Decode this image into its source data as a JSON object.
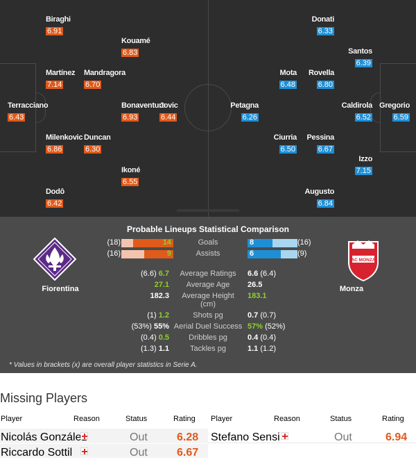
{
  "home": {
    "name": "Fiorentina",
    "players": [
      {
        "name": "Biraghi",
        "rating": "6.91"
      },
      {
        "name": "Kouamé",
        "rating": "6.83"
      },
      {
        "name": "Martínez",
        "rating": "7.14"
      },
      {
        "name": "Mandragora",
        "rating": "6.70"
      },
      {
        "name": "Terracciano",
        "rating": "6.43"
      },
      {
        "name": "Bonaventura",
        "rating": "6.93"
      },
      {
        "name": "Jovic",
        "rating": "6.44"
      },
      {
        "name": "Milenkovic",
        "rating": "6.86"
      },
      {
        "name": "Duncan",
        "rating": "6.30"
      },
      {
        "name": "Ikoné",
        "rating": "6.55"
      },
      {
        "name": "Dodô",
        "rating": "6.42"
      }
    ]
  },
  "away": {
    "name": "Monza",
    "crest_text": "AC MONZA",
    "players": [
      {
        "name": "Donati",
        "rating": "6.33"
      },
      {
        "name": "Santos",
        "rating": "6.39"
      },
      {
        "name": "Mota",
        "rating": "6.48"
      },
      {
        "name": "Rovella",
        "rating": "6.80"
      },
      {
        "name": "Petagna",
        "rating": "6.26"
      },
      {
        "name": "Caldirola",
        "rating": "6.52"
      },
      {
        "name": "Gregorio",
        "rating": "6.59"
      },
      {
        "name": "Ciurria",
        "rating": "6.50"
      },
      {
        "name": "Pessina",
        "rating": "6.67"
      },
      {
        "name": "Izzo",
        "rating": "7.15"
      },
      {
        "name": "Augusto",
        "rating": "6.84"
      }
    ]
  },
  "comparison": {
    "title": "Probable Lineups Statistical Comparison",
    "bars": [
      {
        "label": "Goals",
        "home": "14",
        "home_overall": "(18)",
        "away": "8",
        "away_overall": "(16)",
        "home_fill": 0.78,
        "away_fill": 0.5
      },
      {
        "label": "Assists",
        "home": "9",
        "home_overall": "(16)",
        "away": "6",
        "away_overall": "(9)",
        "home_fill": 0.56,
        "away_fill": 0.67
      }
    ],
    "stats1": [
      {
        "label": "Average Ratings",
        "home_overall": "(6.6)",
        "home": "6.7",
        "away": "6.6",
        "away_overall": "(6.4)",
        "home_better": true,
        "away_better": false
      },
      {
        "label": "Average Age",
        "home_overall": "",
        "home": "27.1",
        "away": "26.5",
        "away_overall": "",
        "home_better": true,
        "away_better": false
      },
      {
        "label": "Average Height (cm)",
        "home_overall": "",
        "home": "182.3",
        "away": "183.1",
        "away_overall": "",
        "home_better": false,
        "away_better": true
      }
    ],
    "stats2": [
      {
        "label": "Shots pg",
        "home_overall": "(1)",
        "home": "1.2",
        "away": "0.7",
        "away_overall": "(0.7)",
        "home_better": true,
        "away_better": false
      },
      {
        "label": "Aerial Duel Success",
        "home_overall": "(53%)",
        "home": "55%",
        "away": "57%",
        "away_overall": "(52%)",
        "home_better": false,
        "away_better": true
      },
      {
        "label": "Dribbles pg",
        "home_overall": "(0.4)",
        "home": "0.5",
        "away": "0.4",
        "away_overall": "(0.4)",
        "home_better": true,
        "away_better": false
      },
      {
        "label": "Tackles pg",
        "home_overall": "(1.3)",
        "home": "1.1",
        "away": "1.1",
        "away_overall": "(1.2)",
        "home_better": false,
        "away_better": false
      }
    ],
    "note": "* Values in brackets (x) are overall player statistics in Serie A."
  },
  "missing": {
    "title": "Missing Players",
    "headers": {
      "player": "Player",
      "reason": "Reason",
      "status": "Status",
      "rating": "Rating"
    },
    "home": [
      {
        "player": "Nicolás González",
        "status": "Out",
        "rating": "6.28"
      },
      {
        "player": "Riccardo Sottil",
        "status": "Out",
        "rating": "6.67"
      }
    ],
    "away": [
      {
        "player": "Stefano Sensi",
        "status": "Out",
        "rating": "6.94"
      }
    ]
  },
  "colors": {
    "home_accent": "#e05a1a",
    "away_accent": "#1e8fd6",
    "positive": "#8fd12a",
    "pitch": "#2d2d2d",
    "panel": "#4b4b4b"
  }
}
